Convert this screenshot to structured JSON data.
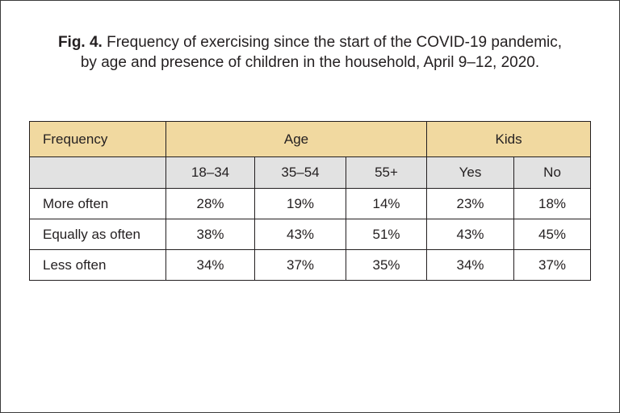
{
  "caption": {
    "fig_label": "Fig. 4.",
    "line1": "Frequency of exercising since the start of the COVID-19 pandemic,",
    "line2": "by age and presence of children in the household, April 9–12, 2020."
  },
  "table": {
    "corner_header": "Frequency",
    "group_headers": [
      "Age",
      "Kids"
    ],
    "sub_headers": [
      "18–34",
      "35–54",
      "55+",
      "Yes",
      "No"
    ],
    "rows": [
      {
        "label": "More often",
        "values": [
          "28%",
          "19%",
          "14%",
          "23%",
          "18%"
        ]
      },
      {
        "label": "Equally as often",
        "values": [
          "38%",
          "43%",
          "51%",
          "43%",
          "45%"
        ]
      },
      {
        "label": "Less often",
        "values": [
          "34%",
          "37%",
          "35%",
          "34%",
          "37%"
        ]
      }
    ]
  },
  "colors": {
    "header_fill": "#f1d9a0",
    "subheader_fill": "#e2e2e2",
    "text": "#231f20"
  }
}
